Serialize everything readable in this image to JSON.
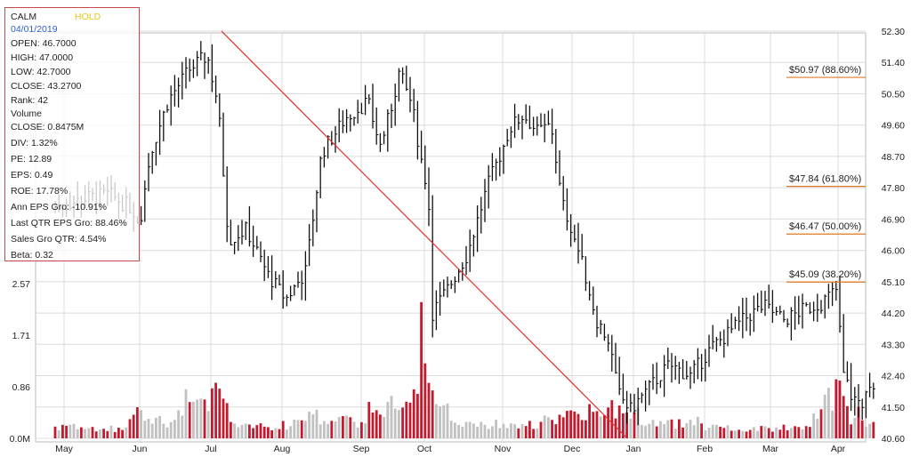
{
  "chart_data": {
    "type": "candlestick",
    "symbol": "CALM",
    "rating": "HOLD",
    "date": "04/01/2019",
    "stats": [
      "OPEN: 46.7000",
      "HIGH: 47.0000",
      "LOW: 42.7000",
      "CLOSE: 43.2700",
      "Rank: 42",
      "Volume",
      "CLOSE: 0.8475M",
      "DIV: 1.32%",
      "PE: 12.89",
      "EPS: 0.49",
      "ROE: 17.78%",
      "Ann EPS Gro: -10.91%",
      "Last QTR EPS Gro: 88.46%",
      "Sales Gro QTR: 4.54%",
      "Beta: 0.32"
    ],
    "x_tick_labels": [
      "May",
      "Jun",
      "Jul",
      "Aug",
      "Sep",
      "Oct",
      "Nov",
      "Dec",
      "Jan",
      "Feb",
      "Mar",
      "Apr"
    ],
    "price_axis": {
      "ticks": [
        "52.30",
        "51.40",
        "50.50",
        "49.60",
        "48.70",
        "47.80",
        "46.90",
        "46.00",
        "45.10",
        "44.20",
        "43.30",
        "42.40",
        "41.50",
        "40.60"
      ],
      "range": [
        40.6,
        52.3
      ]
    },
    "volume_axis": {
      "ticks": [
        "0.0M",
        "0.86",
        "1.71",
        "2.57"
      ],
      "range": [
        0,
        2.57
      ]
    },
    "fib_levels": [
      {
        "label": "$50.97 (88.60%)",
        "price": 50.97
      },
      {
        "label": "$47.84 (61.80%)",
        "price": 47.84
      },
      {
        "label": "$46.47 (50.00%)",
        "price": 46.47
      },
      {
        "label": "$45.09 (38.20%)",
        "price": 45.09
      }
    ],
    "trendline": {
      "from": {
        "month_index": 2.15,
        "price": 52.3
      },
      "to": {
        "month_index": 7.9,
        "price": 40.6
      }
    },
    "price_path": [
      [
        0.0,
        47.3
      ],
      [
        0.3,
        47.5
      ],
      [
        0.6,
        47.6
      ],
      [
        0.9,
        47.2
      ],
      [
        1.0,
        46.8
      ],
      [
        1.15,
        48.8
      ],
      [
        1.4,
        50.3
      ],
      [
        1.7,
        51.2
      ],
      [
        1.95,
        51.6
      ],
      [
        2.1,
        50.2
      ],
      [
        2.25,
        46.3
      ],
      [
        2.5,
        46.6
      ],
      [
        2.8,
        45.3
      ],
      [
        3.05,
        44.6
      ],
      [
        3.3,
        45.4
      ],
      [
        3.5,
        48.8
      ],
      [
        3.8,
        49.8
      ],
      [
        4.1,
        50.3
      ],
      [
        4.3,
        49.0
      ],
      [
        4.45,
        49.9
      ],
      [
        4.6,
        51.1
      ],
      [
        4.8,
        50.2
      ],
      [
        4.95,
        48.6
      ],
      [
        5.05,
        47.7
      ],
      [
        5.1,
        44.2
      ],
      [
        5.3,
        44.9
      ],
      [
        5.55,
        45.9
      ],
      [
        5.8,
        47.8
      ],
      [
        6.1,
        49.5
      ],
      [
        6.3,
        49.9
      ],
      [
        6.5,
        49.4
      ],
      [
        6.7,
        49.6
      ],
      [
        6.85,
        47.4
      ],
      [
        7.0,
        46.6
      ],
      [
        7.2,
        45.4
      ],
      [
        7.4,
        44.0
      ],
      [
        7.6,
        43.4
      ],
      [
        7.75,
        41.9
      ],
      [
        7.95,
        41.4
      ],
      [
        8.2,
        42.0
      ],
      [
        8.5,
        42.7
      ],
      [
        8.8,
        42.4
      ],
      [
        9.1,
        43.2
      ],
      [
        9.35,
        43.6
      ],
      [
        9.65,
        44.1
      ],
      [
        9.9,
        44.4
      ],
      [
        10.2,
        44.0
      ],
      [
        10.5,
        44.3
      ],
      [
        10.75,
        44.5
      ],
      [
        11.0,
        44.9
      ],
      [
        11.05,
        42.6
      ],
      [
        11.2,
        41.8
      ],
      [
        11.35,
        41.6
      ],
      [
        11.45,
        41.9
      ]
    ],
    "volume_profile": [
      [
        0.0,
        0.22
      ],
      [
        0.8,
        0.18
      ],
      [
        1.0,
        0.55
      ],
      [
        1.4,
        0.3
      ],
      [
        2.15,
        0.95
      ],
      [
        2.3,
        0.25
      ],
      [
        3.0,
        0.2
      ],
      [
        3.3,
        0.45
      ],
      [
        4.1,
        0.3
      ],
      [
        5.05,
        1.35
      ],
      [
        5.2,
        0.6
      ],
      [
        5.5,
        0.3
      ],
      [
        6.5,
        0.25
      ],
      [
        7.2,
        0.55
      ],
      [
        7.5,
        0.4
      ],
      [
        7.9,
        0.65
      ],
      [
        8.2,
        0.3
      ],
      [
        9.5,
        0.2
      ],
      [
        10.5,
        0.2
      ],
      [
        11.0,
        0.95
      ],
      [
        11.2,
        0.35
      ],
      [
        11.45,
        0.3
      ]
    ]
  }
}
